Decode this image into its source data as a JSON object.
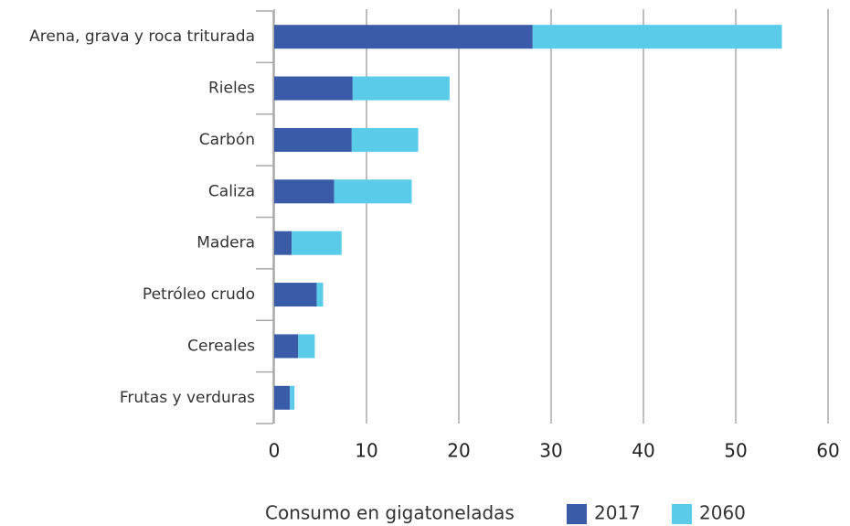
{
  "chart_data": {
    "type": "stacked-barh",
    "categories": [
      "Arena, grava y roca triturada",
      "Rieles",
      "Carbón",
      "Caliza",
      "Madera",
      "Petróleo crudo",
      "Cereales",
      "Frutas y verduras"
    ],
    "series": [
      {
        "name": "2017",
        "color": "#3a5ca8",
        "values": [
          28.0,
          8.5,
          8.4,
          6.5,
          1.9,
          4.6,
          2.6,
          1.7
        ]
      },
      {
        "name": "2060",
        "color": "#5bcbea",
        "values": [
          27.0,
          10.5,
          7.2,
          8.4,
          5.4,
          0.7,
          1.8,
          0.5
        ]
      }
    ],
    "xlabel": "Consumo en gigatoneladas",
    "xlim": [
      0,
      60
    ],
    "xticks": [
      0,
      10,
      20,
      30,
      40,
      50,
      60
    ],
    "grid": true,
    "legend": "bottom"
  }
}
